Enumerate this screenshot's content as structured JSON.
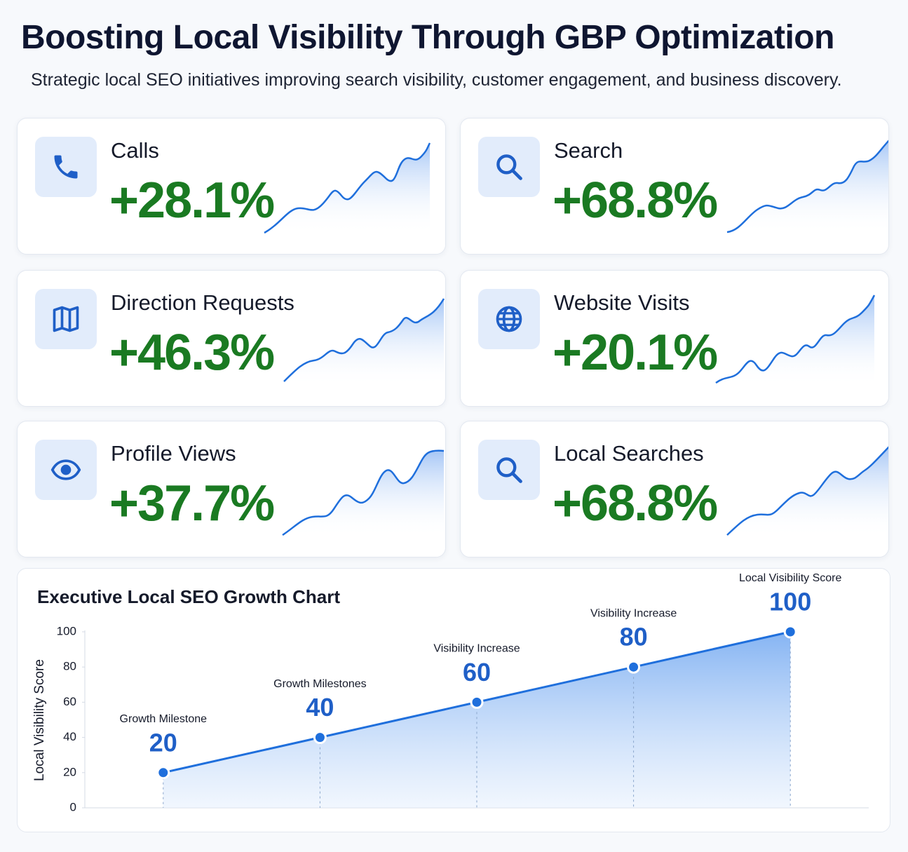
{
  "header": {
    "title": "Boosting Local Visibility Through GBP Optimization",
    "subtitle": "Strategic local SEO initiatives improving search visibility, customer engagement, and business discovery."
  },
  "cards": [
    {
      "label": "Calls",
      "value": "+28.1%"
    },
    {
      "label": "Search",
      "value": "+68.8%"
    },
    {
      "label": "Direction Requests",
      "value": "+46.3%"
    },
    {
      "label": "Website Visits",
      "value": "+20.1%"
    },
    {
      "label": "Profile Views",
      "value": "+37.7%"
    },
    {
      "label": "Local Searches",
      "value": "+68.8%"
    }
  ],
  "chart_data": {
    "type": "line",
    "title": "Executive Local SEO Growth Chart",
    "y_label": "Local Visibility Score",
    "categories": [
      null,
      null,
      null,
      null,
      null
    ],
    "values": [
      20,
      40,
      60,
      80,
      100
    ],
    "annotations": [
      "Growth Milestone",
      "Growth Milestones",
      "Visibility Increase",
      "Visibility Increase",
      "Local Visibility Score"
    ],
    "color": "#1f6fdc",
    "ylim": [
      0,
      100
    ],
    "yticks": [
      0,
      20,
      40,
      60,
      80,
      100
    ]
  }
}
